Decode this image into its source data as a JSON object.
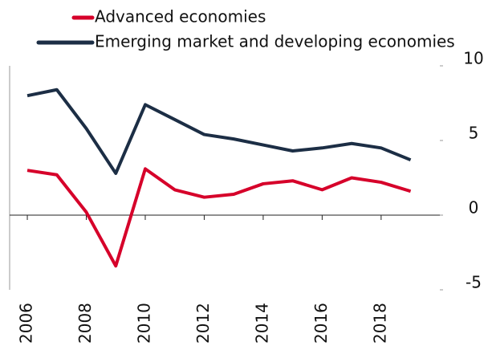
{
  "chart_data": {
    "type": "line",
    "x": [
      2006,
      2007,
      2008,
      2009,
      2010,
      2011,
      2012,
      2013,
      2014,
      2015,
      2016,
      2017,
      2018,
      2019
    ],
    "series": [
      {
        "name": "Advanced economies",
        "color": "#d6002a",
        "values": [
          3.0,
          2.7,
          0.2,
          -3.4,
          3.1,
          1.7,
          1.2,
          1.4,
          2.1,
          2.3,
          1.7,
          2.5,
          2.2,
          1.6
        ]
      },
      {
        "name": "Emerging market and developing economies",
        "color": "#1c2e45",
        "values": [
          8.0,
          8.4,
          5.8,
          2.8,
          7.4,
          6.4,
          5.4,
          5.1,
          4.7,
          4.3,
          4.5,
          4.8,
          4.5,
          3.7
        ]
      }
    ],
    "xlim": [
      2005.4,
      2020.1
    ],
    "xticks": [
      2006,
      2008,
      2010,
      2012,
      2014,
      2016,
      2018
    ],
    "ylim": [
      -5,
      10
    ],
    "yticks": [
      -5,
      0,
      5,
      10
    ]
  }
}
